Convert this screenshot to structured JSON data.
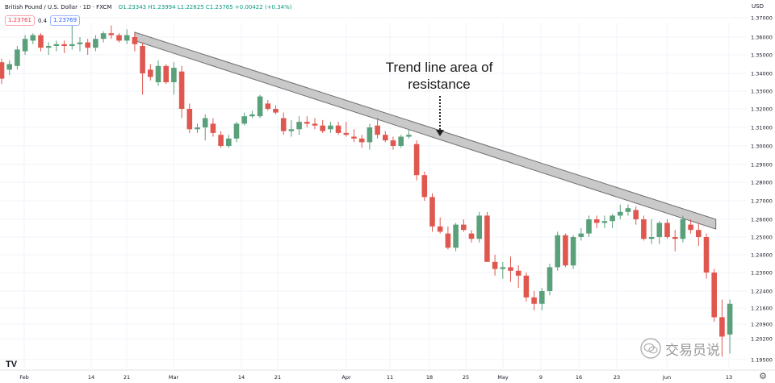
{
  "header": {
    "symbol": "British Pound / U.S. Dollar · 1D · FXCM",
    "ohlc": "O1.23343 H1.23994 L1.22825 C1.23765 +0.00422 (+0.34%)"
  },
  "trade": {
    "sell": "1.23761",
    "spread": "0.4",
    "buy": "1.23769"
  },
  "currency": "USD",
  "annotation": {
    "line1": "Trend line area of",
    "line2": "resistance"
  },
  "watermark": "交易员说",
  "logo_text": "TV",
  "icons": {
    "settings": "gear-icon",
    "watermark": "wechat-icon",
    "arrow": "dotted-down-arrow-icon"
  },
  "colors": {
    "up": "#5aa07a",
    "down": "#e0574f",
    "band_fill": "#c9c9c9",
    "band_stroke": "#6e6e6e"
  },
  "chart_data": {
    "type": "candlestick",
    "title": "British Pound / U.S. Dollar · 1D · FXCM",
    "y_ticks": [
      "1.37000",
      "1.36000",
      "1.35000",
      "1.34000",
      "1.33000",
      "1.32000",
      "1.31000",
      "1.30000",
      "1.29000",
      "1.28000",
      "1.27000",
      "1.26000",
      "1.25000",
      "1.24000",
      "1.23000",
      "1.22400",
      "1.21600",
      "1.20900",
      "1.20200",
      "1.19500"
    ],
    "x_ticks": [
      "Feb",
      "14",
      "21",
      "Mar",
      "14",
      "21",
      "Apr",
      "11",
      "18",
      "25",
      "May",
      "9",
      "16",
      "23",
      "Jun",
      "13"
    ],
    "candles": [
      {
        "o": 1.346,
        "h": 1.348,
        "l": 1.334,
        "c": 1.337
      },
      {
        "o": 1.342,
        "h": 1.347,
        "l": 1.339,
        "c": 1.345
      },
      {
        "o": 1.344,
        "h": 1.355,
        "l": 1.342,
        "c": 1.353
      },
      {
        "o": 1.352,
        "h": 1.361,
        "l": 1.35,
        "c": 1.359
      },
      {
        "o": 1.358,
        "h": 1.362,
        "l": 1.356,
        "c": 1.361
      },
      {
        "o": 1.361,
        "h": 1.362,
        "l": 1.352,
        "c": 1.354
      },
      {
        "o": 1.354,
        "h": 1.357,
        "l": 1.35,
        "c": 1.355
      },
      {
        "o": 1.355,
        "h": 1.358,
        "l": 1.352,
        "c": 1.356
      },
      {
        "o": 1.356,
        "h": 1.358,
        "l": 1.351,
        "c": 1.355
      },
      {
        "o": 1.355,
        "h": 1.366,
        "l": 1.353,
        "c": 1.356
      },
      {
        "o": 1.356,
        "h": 1.36,
        "l": 1.352,
        "c": 1.357
      },
      {
        "o": 1.357,
        "h": 1.359,
        "l": 1.35,
        "c": 1.354
      },
      {
        "o": 1.354,
        "h": 1.361,
        "l": 1.352,
        "c": 1.359
      },
      {
        "o": 1.359,
        "h": 1.363,
        "l": 1.357,
        "c": 1.362
      },
      {
        "o": 1.362,
        "h": 1.366,
        "l": 1.359,
        "c": 1.361
      },
      {
        "o": 1.361,
        "h": 1.362,
        "l": 1.357,
        "c": 1.358
      },
      {
        "o": 1.358,
        "h": 1.364,
        "l": 1.356,
        "c": 1.361
      },
      {
        "o": 1.36,
        "h": 1.362,
        "l": 1.352,
        "c": 1.356
      },
      {
        "o": 1.355,
        "h": 1.357,
        "l": 1.328,
        "c": 1.34
      },
      {
        "o": 1.342,
        "h": 1.345,
        "l": 1.336,
        "c": 1.338
      },
      {
        "o": 1.335,
        "h": 1.347,
        "l": 1.333,
        "c": 1.344
      },
      {
        "o": 1.344,
        "h": 1.345,
        "l": 1.334,
        "c": 1.335
      },
      {
        "o": 1.335,
        "h": 1.346,
        "l": 1.328,
        "c": 1.343
      },
      {
        "o": 1.341,
        "h": 1.344,
        "l": 1.315,
        "c": 1.32
      },
      {
        "o": 1.32,
        "h": 1.323,
        "l": 1.307,
        "c": 1.309
      },
      {
        "o": 1.309,
        "h": 1.312,
        "l": 1.307,
        "c": 1.31
      },
      {
        "o": 1.31,
        "h": 1.317,
        "l": 1.303,
        "c": 1.315
      },
      {
        "o": 1.312,
        "h": 1.315,
        "l": 1.305,
        "c": 1.307
      },
      {
        "o": 1.306,
        "h": 1.308,
        "l": 1.299,
        "c": 1.3
      },
      {
        "o": 1.3,
        "h": 1.306,
        "l": 1.299,
        "c": 1.304
      },
      {
        "o": 1.304,
        "h": 1.313,
        "l": 1.302,
        "c": 1.312
      },
      {
        "o": 1.312,
        "h": 1.318,
        "l": 1.311,
        "c": 1.316
      },
      {
        "o": 1.316,
        "h": 1.319,
        "l": 1.315,
        "c": 1.317
      },
      {
        "o": 1.316,
        "h": 1.328,
        "l": 1.315,
        "c": 1.327
      },
      {
        "o": 1.323,
        "h": 1.325,
        "l": 1.319,
        "c": 1.32
      },
      {
        "o": 1.32,
        "h": 1.322,
        "l": 1.317,
        "c": 1.318
      },
      {
        "o": 1.315,
        "h": 1.318,
        "l": 1.306,
        "c": 1.308
      },
      {
        "o": 1.308,
        "h": 1.314,
        "l": 1.305,
        "c": 1.309
      },
      {
        "o": 1.309,
        "h": 1.316,
        "l": 1.306,
        "c": 1.313
      },
      {
        "o": 1.313,
        "h": 1.316,
        "l": 1.31,
        "c": 1.312
      },
      {
        "o": 1.312,
        "h": 1.315,
        "l": 1.309,
        "c": 1.311
      },
      {
        "o": 1.311,
        "h": 1.314,
        "l": 1.307,
        "c": 1.308
      },
      {
        "o": 1.309,
        "h": 1.313,
        "l": 1.307,
        "c": 1.311
      },
      {
        "o": 1.311,
        "h": 1.313,
        "l": 1.306,
        "c": 1.307
      },
      {
        "o": 1.307,
        "h": 1.313,
        "l": 1.305,
        "c": 1.306
      },
      {
        "o": 1.305,
        "h": 1.309,
        "l": 1.302,
        "c": 1.304
      },
      {
        "o": 1.304,
        "h": 1.306,
        "l": 1.299,
        "c": 1.302
      },
      {
        "o": 1.302,
        "h": 1.312,
        "l": 1.298,
        "c": 1.31
      },
      {
        "o": 1.311,
        "h": 1.315,
        "l": 1.304,
        "c": 1.306
      },
      {
        "o": 1.306,
        "h": 1.308,
        "l": 1.302,
        "c": 1.303
      },
      {
        "o": 1.303,
        "h": 1.305,
        "l": 1.298,
        "c": 1.3
      },
      {
        "o": 1.3,
        "h": 1.306,
        "l": 1.299,
        "c": 1.305
      },
      {
        "o": 1.305,
        "h": 1.309,
        "l": 1.304,
        "c": 1.306
      },
      {
        "o": 1.301,
        "h": 1.303,
        "l": 1.281,
        "c": 1.284
      },
      {
        "o": 1.284,
        "h": 1.286,
        "l": 1.27,
        "c": 1.272
      },
      {
        "o": 1.272,
        "h": 1.274,
        "l": 1.253,
        "c": 1.256
      },
      {
        "o": 1.256,
        "h": 1.261,
        "l": 1.252,
        "c": 1.253
      },
      {
        "o": 1.252,
        "h": 1.256,
        "l": 1.243,
        "c": 1.244
      },
      {
        "o": 1.244,
        "h": 1.258,
        "l": 1.242,
        "c": 1.257
      },
      {
        "o": 1.257,
        "h": 1.26,
        "l": 1.253,
        "c": 1.254
      },
      {
        "o": 1.252,
        "h": 1.254,
        "l": 1.247,
        "c": 1.249
      },
      {
        "o": 1.249,
        "h": 1.264,
        "l": 1.247,
        "c": 1.262
      },
      {
        "o": 1.262,
        "h": 1.264,
        "l": 1.236,
        "c": 1.236
      },
      {
        "o": 1.236,
        "h": 1.24,
        "l": 1.229,
        "c": 1.232
      },
      {
        "o": 1.232,
        "h": 1.236,
        "l": 1.228,
        "c": 1.233
      },
      {
        "o": 1.233,
        "h": 1.239,
        "l": 1.227,
        "c": 1.231
      },
      {
        "o": 1.231,
        "h": 1.234,
        "l": 1.225,
        "c": 1.229
      },
      {
        "o": 1.229,
        "h": 1.23,
        "l": 1.219,
        "c": 1.221
      },
      {
        "o": 1.221,
        "h": 1.224,
        "l": 1.215,
        "c": 1.218
      },
      {
        "o": 1.218,
        "h": 1.225,
        "l": 1.215,
        "c": 1.224
      },
      {
        "o": 1.224,
        "h": 1.235,
        "l": 1.222,
        "c": 1.233
      },
      {
        "o": 1.233,
        "h": 1.253,
        "l": 1.231,
        "c": 1.251
      },
      {
        "o": 1.251,
        "h": 1.252,
        "l": 1.233,
        "c": 1.234
      },
      {
        "o": 1.234,
        "h": 1.251,
        "l": 1.232,
        "c": 1.25
      },
      {
        "o": 1.25,
        "h": 1.255,
        "l": 1.248,
        "c": 1.252
      },
      {
        "o": 1.252,
        "h": 1.262,
        "l": 1.25,
        "c": 1.26
      },
      {
        "o": 1.26,
        "h": 1.262,
        "l": 1.255,
        "c": 1.258
      },
      {
        "o": 1.258,
        "h": 1.262,
        "l": 1.255,
        "c": 1.259
      },
      {
        "o": 1.259,
        "h": 1.263,
        "l": 1.255,
        "c": 1.262
      },
      {
        "o": 1.262,
        "h": 1.268,
        "l": 1.26,
        "c": 1.264
      },
      {
        "o": 1.264,
        "h": 1.268,
        "l": 1.262,
        "c": 1.266
      },
      {
        "o": 1.265,
        "h": 1.267,
        "l": 1.257,
        "c": 1.26
      },
      {
        "o": 1.26,
        "h": 1.262,
        "l": 1.248,
        "c": 1.249
      },
      {
        "o": 1.249,
        "h": 1.26,
        "l": 1.246,
        "c": 1.25
      },
      {
        "o": 1.25,
        "h": 1.259,
        "l": 1.246,
        "c": 1.258
      },
      {
        "o": 1.258,
        "h": 1.26,
        "l": 1.249,
        "c": 1.25
      },
      {
        "o": 1.25,
        "h": 1.254,
        "l": 1.242,
        "c": 1.249
      },
      {
        "o": 1.249,
        "h": 1.262,
        "l": 1.247,
        "c": 1.26
      },
      {
        "o": 1.257,
        "h": 1.26,
        "l": 1.252,
        "c": 1.254
      },
      {
        "o": 1.254,
        "h": 1.258,
        "l": 1.245,
        "c": 1.25
      },
      {
        "o": 1.25,
        "h": 1.252,
        "l": 1.228,
        "c": 1.23
      },
      {
        "o": 1.23,
        "h": 1.232,
        "l": 1.21,
        "c": 1.212
      },
      {
        "o": 1.212,
        "h": 1.22,
        "l": 1.196,
        "c": 1.203
      },
      {
        "o": 1.204,
        "h": 1.22,
        "l": 1.197,
        "c": 1.218
      }
    ],
    "trendline_band": {
      "label": "Trend line area of resistance",
      "start_index": 17,
      "end_index": 91,
      "upper_start": 1.3625,
      "upper_end": 1.26,
      "lower_start": 1.358,
      "lower_end": 1.2545
    }
  }
}
